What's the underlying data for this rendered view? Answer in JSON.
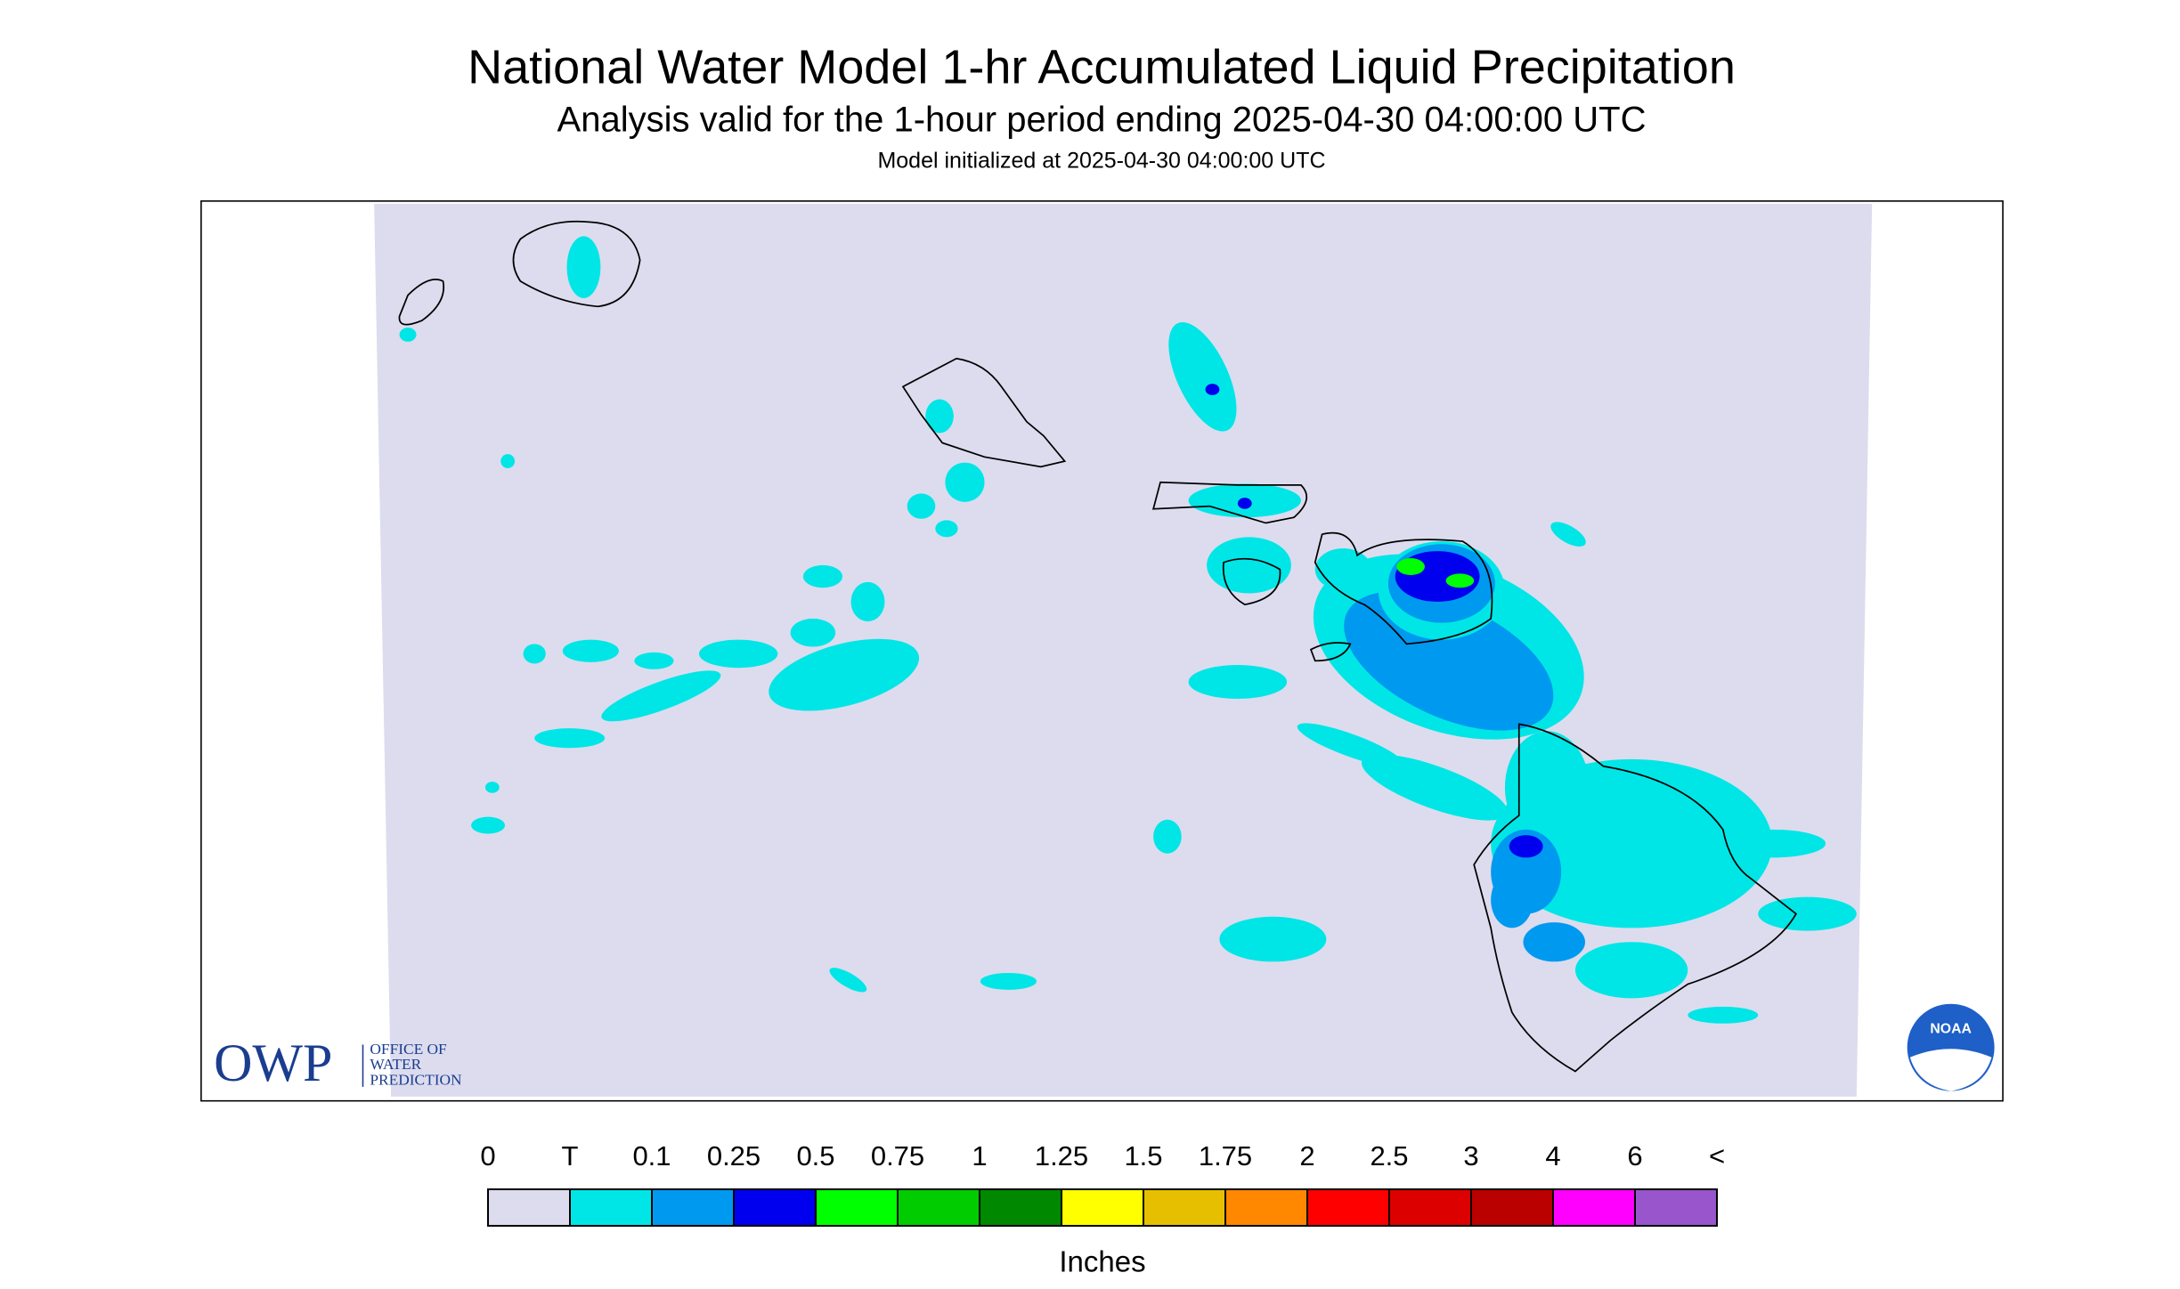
{
  "header": {
    "title": "National Water Model 1-hr Accumulated Liquid Precipitation",
    "subtitle": "Analysis valid for the 1-hour period ending 2025-04-30 04:00:00 UTC",
    "init": "Model initialized at 2025-04-30 04:00:00 UTC"
  },
  "logos": {
    "owp": "OWP",
    "owp_lines": [
      "OFFICE OF",
      "WATER",
      "PREDICTION"
    ],
    "noaa": "NOAA"
  },
  "legend": {
    "labels": [
      "0",
      "T",
      "0.1",
      "0.25",
      "0.5",
      "0.75",
      "1",
      "1.25",
      "1.5",
      "1.75",
      "2",
      "2.5",
      "3",
      "4",
      "6",
      "<"
    ],
    "colors": [
      "#dcdcee",
      "#00e6e6",
      "#0099f0",
      "#0000ee",
      "#00ff00",
      "#00cc00",
      "#008800",
      "#ffff00",
      "#e6c000",
      "#ff8800",
      "#ff0000",
      "#dd0000",
      "#bb0000",
      "#ff00ff",
      "#9955cc"
    ],
    "unit": "Inches"
  }
}
